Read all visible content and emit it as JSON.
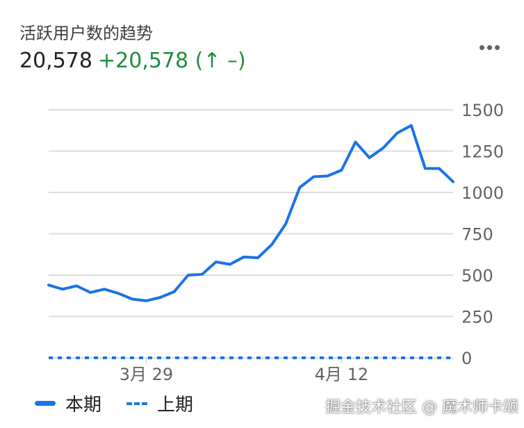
{
  "header": {
    "title": "活跃用户数的趋势",
    "total": "20,578",
    "delta": "+20,578 (↑ –)"
  },
  "menu": {
    "icon": "more-horiz-icon"
  },
  "colors": {
    "line": "#1a73e8",
    "grid": "#dadce0",
    "positive": "#1e8e3e"
  },
  "chart_data": {
    "type": "line",
    "title": "活跃用户数的趋势",
    "x_tick_labels": [
      "3月 29",
      "4月 12"
    ],
    "y_tick_labels": [
      "0",
      "250",
      "500",
      "750",
      "1000",
      "1250",
      "1500"
    ],
    "ylim": [
      0,
      1500
    ],
    "grid": true,
    "legend_position": "bottom-left",
    "series": [
      {
        "name": "本期",
        "style": "solid",
        "values": [
          440,
          415,
          435,
          395,
          415,
          390,
          355,
          345,
          365,
          400,
          500,
          505,
          580,
          565,
          610,
          605,
          685,
          810,
          1030,
          1095,
          1100,
          1135,
          1305,
          1210,
          1270,
          1360,
          1405,
          1145,
          1145,
          1065
        ]
      },
      {
        "name": "上期",
        "style": "dashed",
        "values": [
          0,
          0,
          0,
          0,
          0,
          0,
          0,
          0,
          0,
          0,
          0,
          0,
          0,
          0,
          0,
          0,
          0,
          0,
          0,
          0,
          0,
          0,
          0,
          0,
          0,
          0,
          0,
          0,
          0,
          0
        ]
      }
    ]
  },
  "legend": {
    "current": "本期",
    "previous": "上期"
  },
  "watermark": "掘金技术社区 @ 魔术师卡颂"
}
